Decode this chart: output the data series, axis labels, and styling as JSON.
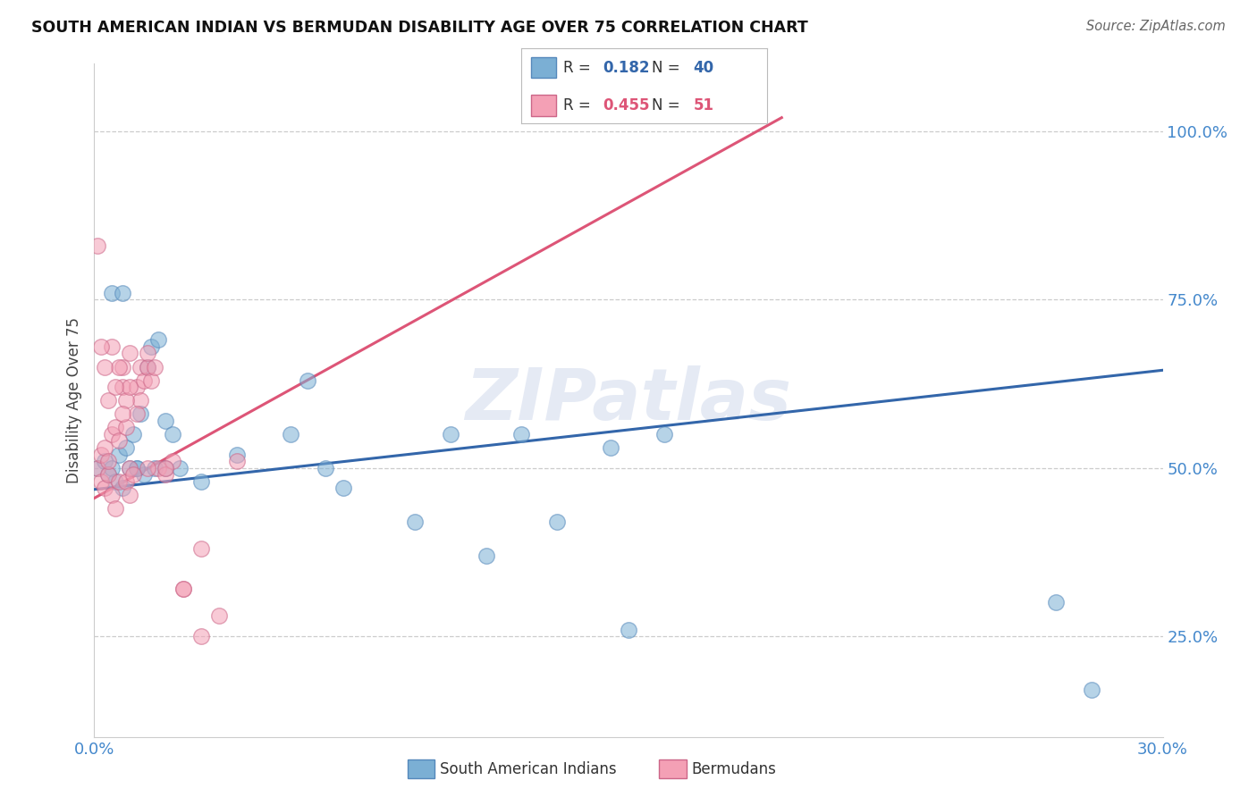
{
  "title": "SOUTH AMERICAN INDIAN VS BERMUDAN DISABILITY AGE OVER 75 CORRELATION CHART",
  "source": "Source: ZipAtlas.com",
  "ylabel": "Disability Age Over 75",
  "xlim": [
    0.0,
    0.3
  ],
  "ylim": [
    0.1,
    1.1
  ],
  "xtick_positions": [
    0.0,
    0.05,
    0.1,
    0.15,
    0.2,
    0.25,
    0.3
  ],
  "xticklabels": [
    "0.0%",
    "",
    "",
    "",
    "",
    "",
    "30.0%"
  ],
  "ytick_positions": [
    0.25,
    0.5,
    0.75,
    1.0
  ],
  "yticklabels": [
    "25.0%",
    "50.0%",
    "75.0%",
    "100.0%"
  ],
  "grid_color": "#cccccc",
  "background_color": "#ffffff",
  "blue_color": "#7bafd4",
  "pink_color": "#f4a0b5",
  "blue_marker_edge": "#5588bb",
  "pink_marker_edge": "#cc6688",
  "blue_line_color": "#3366aa",
  "pink_line_color": "#dd5577",
  "tick_label_color": "#4488cc",
  "r_blue": 0.182,
  "n_blue": 40,
  "r_pink": 0.455,
  "n_pink": 51,
  "watermark": "ZIPatlas",
  "blue_scatter_x": [
    0.001,
    0.003,
    0.004,
    0.005,
    0.006,
    0.007,
    0.008,
    0.009,
    0.01,
    0.011,
    0.012,
    0.013,
    0.014,
    0.015,
    0.016,
    0.017,
    0.018,
    0.02,
    0.022,
    0.024,
    0.03,
    0.04,
    0.055,
    0.06,
    0.065,
    0.07,
    0.09,
    0.1,
    0.11,
    0.12,
    0.13,
    0.145,
    0.15,
    0.16,
    0.27,
    0.28,
    0.005,
    0.008,
    0.012,
    0.02
  ],
  "blue_scatter_y": [
    0.5,
    0.51,
    0.49,
    0.5,
    0.48,
    0.52,
    0.47,
    0.53,
    0.5,
    0.55,
    0.5,
    0.58,
    0.49,
    0.65,
    0.68,
    0.5,
    0.69,
    0.57,
    0.55,
    0.5,
    0.48,
    0.52,
    0.55,
    0.63,
    0.5,
    0.47,
    0.42,
    0.55,
    0.37,
    0.55,
    0.42,
    0.53,
    0.26,
    0.55,
    0.3,
    0.17,
    0.76,
    0.76,
    0.5,
    0.5
  ],
  "pink_scatter_x": [
    0.001,
    0.002,
    0.002,
    0.003,
    0.003,
    0.004,
    0.004,
    0.005,
    0.005,
    0.006,
    0.006,
    0.007,
    0.007,
    0.008,
    0.008,
    0.009,
    0.009,
    0.01,
    0.01,
    0.011,
    0.012,
    0.013,
    0.013,
    0.014,
    0.015,
    0.016,
    0.017,
    0.018,
    0.02,
    0.022,
    0.025,
    0.03,
    0.035,
    0.04,
    0.005,
    0.007,
    0.009,
    0.01,
    0.012,
    0.015,
    0.02,
    0.025,
    0.03,
    0.001,
    0.002,
    0.003,
    0.004,
    0.006,
    0.008,
    0.01,
    0.015
  ],
  "pink_scatter_y": [
    0.5,
    0.48,
    0.52,
    0.47,
    0.53,
    0.49,
    0.51,
    0.46,
    0.55,
    0.44,
    0.56,
    0.48,
    0.54,
    0.62,
    0.65,
    0.48,
    0.56,
    0.5,
    0.46,
    0.49,
    0.62,
    0.65,
    0.6,
    0.63,
    0.65,
    0.63,
    0.65,
    0.5,
    0.49,
    0.51,
    0.32,
    0.38,
    0.28,
    0.51,
    0.68,
    0.65,
    0.6,
    0.62,
    0.58,
    0.67,
    0.5,
    0.32,
    0.25,
    0.83,
    0.68,
    0.65,
    0.6,
    0.62,
    0.58,
    0.67,
    0.5
  ],
  "blue_trend_x": [
    0.0,
    0.3
  ],
  "blue_trend_y": [
    0.468,
    0.645
  ],
  "pink_trend_x": [
    0.0,
    0.193
  ],
  "pink_trend_y": [
    0.455,
    1.02
  ]
}
